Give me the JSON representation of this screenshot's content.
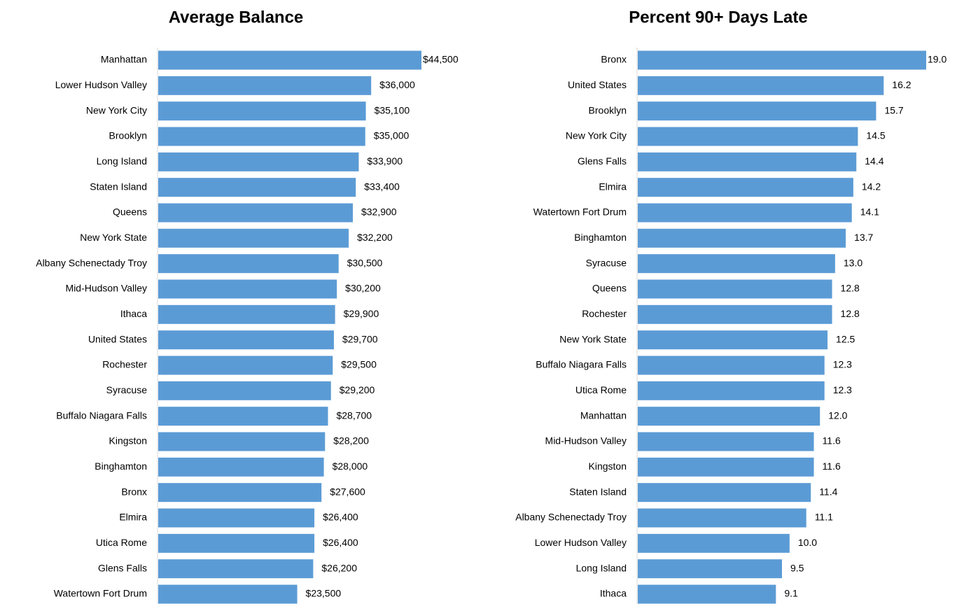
{
  "chart_data": [
    {
      "type": "bar",
      "orientation": "horizontal",
      "title": "Average Balance",
      "color": "#5b9bd5",
      "categories": [
        "Manhattan",
        "Lower Hudson Valley",
        "New York City",
        "Brooklyn",
        "Long Island",
        "Staten Island",
        "Queens",
        "New York State",
        "Albany Schenectady Troy",
        "Mid-Hudson Valley",
        "Ithaca",
        "United States",
        "Rochester",
        "Syracuse",
        "Buffalo Niagara Falls",
        "Kingston",
        "Binghamton",
        "Bronx",
        "Elmira",
        "Utica Rome",
        "Glens Falls",
        "Watertown Fort Drum"
      ],
      "values": [
        44500,
        36000,
        35100,
        35000,
        33900,
        33400,
        32900,
        32200,
        30500,
        30200,
        29900,
        29700,
        29500,
        29200,
        28700,
        28200,
        28000,
        27600,
        26400,
        26400,
        26200,
        23500
      ],
      "value_labels": [
        "$44,500",
        "$36,000",
        "$35,100",
        "$35,000",
        "$33,900",
        "$33,400",
        "$32,900",
        "$32,200",
        "$30,500",
        "$30,200",
        "$29,900",
        "$29,700",
        "$29,500",
        "$29,200",
        "$28,700",
        "$28,200",
        "$28,000",
        "$27,600",
        "$26,400",
        "$26,400",
        "$26,200",
        "$23,500"
      ]
    },
    {
      "type": "bar",
      "orientation": "horizontal",
      "title": "Percent 90+ Days Late",
      "color": "#5b9bd5",
      "categories": [
        "Bronx",
        "United States",
        "Brooklyn",
        "New York City",
        "Glens Falls",
        "Elmira",
        "Watertown Fort Drum",
        "Binghamton",
        "Syracuse",
        "Queens",
        "Rochester",
        "New York State",
        "Buffalo Niagara Falls",
        "Utica Rome",
        "Manhattan",
        "Mid-Hudson Valley",
        "Kingston",
        "Staten Island",
        "Albany Schenectady Troy",
        "Lower Hudson Valley",
        "Long Island",
        "Ithaca"
      ],
      "values": [
        19.0,
        16.2,
        15.7,
        14.5,
        14.4,
        14.2,
        14.1,
        13.7,
        13.0,
        12.8,
        12.8,
        12.5,
        12.3,
        12.3,
        12.0,
        11.6,
        11.6,
        11.4,
        11.1,
        10.0,
        9.5,
        9.1
      ],
      "value_labels": [
        "19.0",
        "16.2",
        "15.7",
        "14.5",
        "14.4",
        "14.2",
        "14.1",
        "13.7",
        "13.0",
        "12.8",
        "12.8",
        "12.5",
        "12.3",
        "12.3",
        "12.0",
        "11.6",
        "11.6",
        "11.4",
        "11.1",
        "10.0",
        "9.5",
        "9.1"
      ]
    }
  ]
}
